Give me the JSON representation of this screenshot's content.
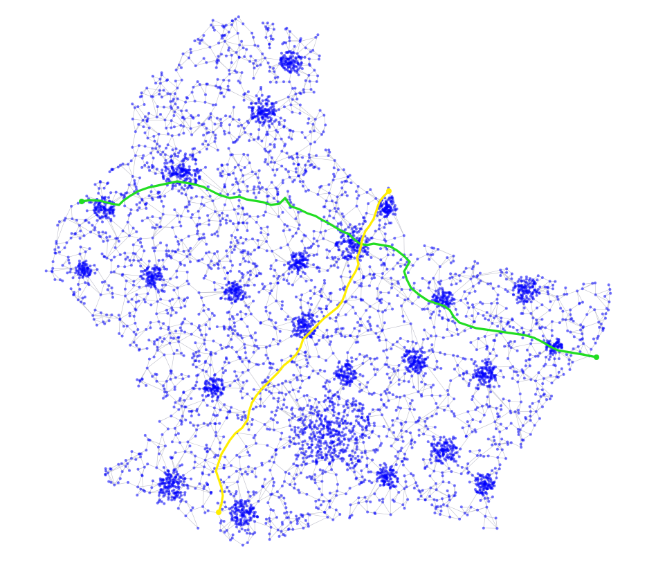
{
  "map": {
    "node_color": "#0000ff",
    "edge_color": "#8a8aa0",
    "background": "#ffffff"
  },
  "routes": [
    {
      "id": "green-route",
      "color": "#22dd22"
    },
    {
      "id": "yellow-route",
      "color": "#ffee00"
    }
  ]
}
